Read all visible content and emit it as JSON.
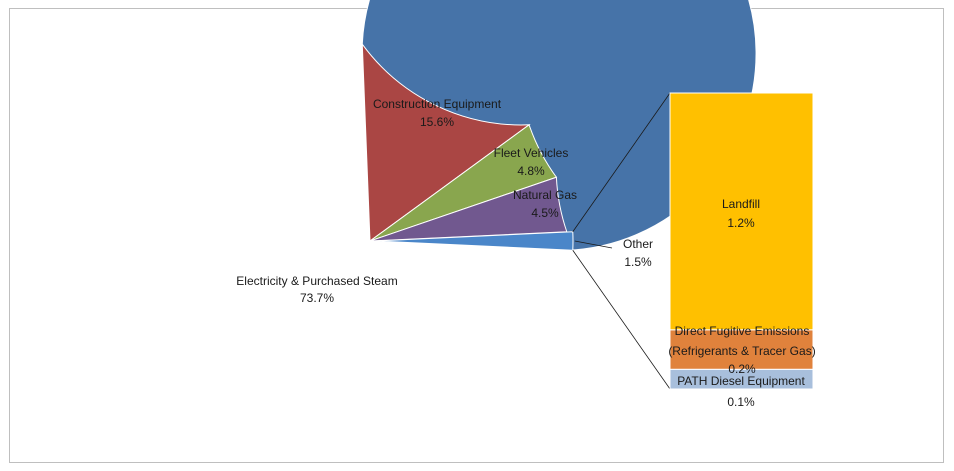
{
  "chart_data": {
    "type": "bar-of-pie",
    "pie": {
      "slices": [
        {
          "name": "Electricity & Purchased Steam",
          "value": 73.7,
          "label": "73.7%",
          "color": "#4673a8"
        },
        {
          "name": "Construction Equipment",
          "value": 15.6,
          "label": "15.6%",
          "color": "#aa4644"
        },
        {
          "name": "Fleet Vehicles",
          "value": 4.8,
          "label": "4.8%",
          "color": "#89a64e"
        },
        {
          "name": "Natural Gas",
          "value": 4.5,
          "label": "4.5%",
          "color": "#71588f"
        },
        {
          "name": "Other",
          "value": 1.5,
          "label": "1.5%",
          "color": "#4a86c9"
        }
      ]
    },
    "bar": {
      "segments": [
        {
          "name": "PATH Diesel Equipment",
          "value": 0.1,
          "label": "0.1%",
          "color": "#a8bfdc"
        },
        {
          "name": "Direct Fugitive Emissions (Refrigerants & Tracer Gas)",
          "line1": "Direct Fugitive Emissions",
          "line2": "(Refrigerants & Tracer Gas)",
          "value": 0.2,
          "label": "0.2%",
          "color": "#e0823c"
        },
        {
          "name": "Landfill",
          "value": 1.2,
          "label": "1.2%",
          "color": "#ffc000"
        }
      ]
    }
  }
}
